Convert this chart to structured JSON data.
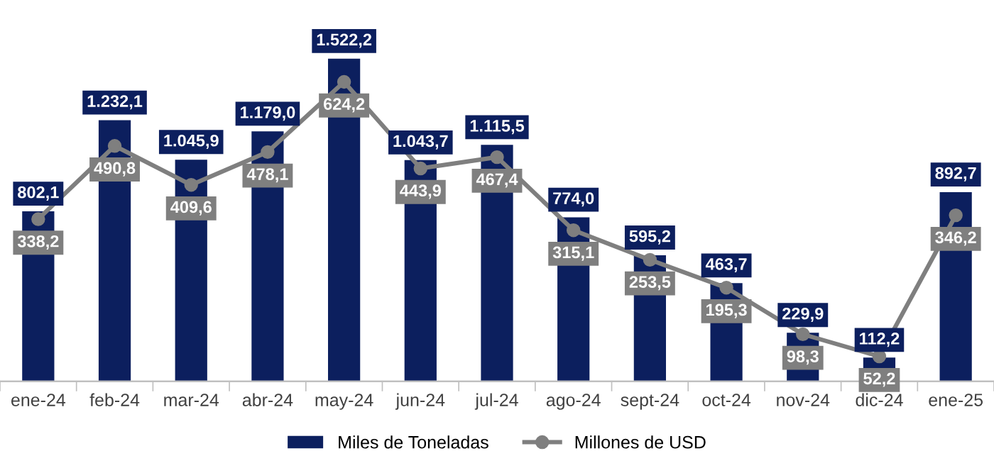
{
  "chart_data": {
    "type": "bar",
    "relative": false,
    "categories": [
      "ene-24",
      "feb-24",
      "mar-24",
      "abr-24",
      "may-24",
      "jun-24",
      "jul-24",
      "ago-24",
      "sept-24",
      "oct-24",
      "nov-24",
      "dic-24",
      "ene-25"
    ],
    "series": [
      {
        "name": "Miles de Toneladas",
        "color": "#0c1f5e",
        "values": [
          802.1,
          1232.1,
          1045.9,
          1179.0,
          1522.2,
          1043.7,
          1115.5,
          774.0,
          595.2,
          463.7,
          229.9,
          112.2,
          892.7
        ],
        "value_labels": [
          "802,1",
          "1.232,1",
          "1.045,9",
          "1.179,0",
          "1.522,2",
          "1.043,7",
          "1.115,5",
          "774,0",
          "595,2",
          "463,7",
          "229,9",
          "112,2",
          "892,7"
        ]
      },
      {
        "name": "Millones de USD",
        "type": "line",
        "axis": "y2",
        "color": "#7f7f7f",
        "marker": "circle",
        "values": [
          338.2,
          490.8,
          409.6,
          478.1,
          624.2,
          443.9,
          467.4,
          315.1,
          253.5,
          195.3,
          98.3,
          52.2,
          346.2
        ],
        "value_labels": [
          "338,2",
          "490,8",
          "409,6",
          "478,1",
          "624,2",
          "443,9",
          "467,4",
          "315,1",
          "253,5",
          "195,3",
          "98,3",
          "52,2",
          "346,2"
        ]
      }
    ],
    "legend": "bottom",
    "grid": false,
    "tick_labels": "x"
  }
}
